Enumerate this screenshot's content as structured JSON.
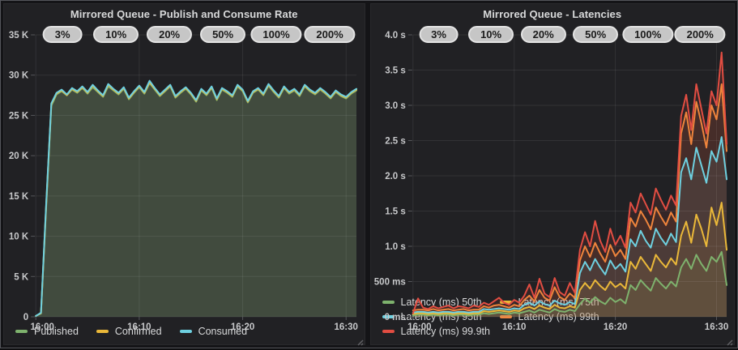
{
  "window": {
    "theme": "grafana-dark"
  },
  "chart_data": [
    {
      "type": "area",
      "title": "Mirrored Queue - Publish and Consume Rate",
      "annotations": [
        "3%",
        "10%",
        "20%",
        "50%",
        "100%",
        "200%"
      ],
      "x_max": 31,
      "xticks": [
        {
          "t": 0,
          "label": "16:00"
        },
        {
          "t": 10,
          "label": "16:10"
        },
        {
          "t": 20,
          "label": "16:20"
        },
        {
          "t": 30,
          "label": "16:30"
        }
      ],
      "ylim": [
        0,
        35
      ],
      "yticks": [
        {
          "v": 0,
          "label": "0"
        },
        {
          "v": 5,
          "label": "5 K"
        },
        {
          "v": 10,
          "label": "10 K"
        },
        {
          "v": 15,
          "label": "15 K"
        },
        {
          "v": 20,
          "label": "20 K"
        },
        {
          "v": 25,
          "label": "25 K"
        },
        {
          "v": 30,
          "label": "30 K"
        },
        {
          "v": 35,
          "label": "35 K"
        }
      ],
      "y_value_scale": "thousands",
      "grid": true,
      "legend_position": "bottom",
      "fill_opacity": 0.1,
      "series": [
        {
          "name": "Published",
          "color": "#7eb26d",
          "values": [
            0.1,
            0.4,
            13.5,
            26.2,
            27.6,
            28.0,
            27.5,
            28.2,
            27.8,
            28.4,
            27.7,
            28.5,
            27.9,
            27.3,
            28.6,
            28.1,
            27.6,
            28.3,
            27.0,
            27.8,
            28.5,
            27.7,
            29.0,
            28.2,
            27.4,
            28.0,
            28.6,
            27.2,
            27.8,
            28.3,
            27.6,
            26.7,
            28.1,
            27.5,
            28.4,
            26.9,
            28.2,
            27.8,
            27.3,
            28.6,
            28.0,
            26.6,
            27.8,
            28.2,
            27.5,
            28.7,
            27.9,
            27.2,
            28.4,
            27.7,
            28.1,
            27.4,
            28.6,
            28.0,
            27.6,
            28.2,
            27.7,
            27.1,
            27.9,
            27.4,
            27.1,
            27.7,
            28.1
          ]
        },
        {
          "name": "Confirmed",
          "color": "#eab839",
          "values": [
            0.1,
            0.45,
            13.8,
            26.4,
            27.7,
            28.1,
            27.5,
            28.3,
            27.9,
            28.5,
            27.8,
            28.7,
            28.0,
            27.4,
            28.8,
            28.2,
            27.7,
            28.4,
            27.1,
            27.9,
            28.6,
            27.8,
            29.1,
            28.3,
            27.5,
            28.1,
            28.7,
            27.3,
            27.9,
            28.4,
            27.7,
            26.8,
            28.2,
            27.6,
            28.5,
            27.0,
            28.3,
            27.9,
            27.4,
            28.7,
            28.1,
            26.7,
            27.9,
            28.3,
            27.6,
            28.8,
            28.0,
            27.3,
            28.5,
            27.8,
            28.2,
            27.5,
            28.7,
            28.1,
            27.7,
            28.3,
            27.8,
            27.2,
            28.0,
            27.5,
            27.2,
            27.8,
            28.2
          ]
        },
        {
          "name": "Consumed",
          "color": "#6ed0e0",
          "values": [
            0.1,
            0.5,
            14.0,
            26.5,
            27.8,
            28.2,
            27.6,
            28.4,
            28.0,
            28.6,
            27.9,
            28.8,
            28.1,
            27.5,
            28.9,
            28.3,
            27.8,
            28.5,
            27.2,
            28.0,
            28.7,
            27.9,
            29.3,
            28.4,
            27.6,
            28.2,
            28.8,
            27.4,
            28.0,
            28.5,
            27.8,
            26.9,
            28.3,
            27.7,
            28.6,
            27.1,
            28.4,
            28.0,
            27.5,
            28.8,
            28.2,
            26.8,
            28.0,
            28.4,
            27.7,
            28.9,
            28.1,
            27.4,
            28.6,
            27.9,
            28.3,
            27.6,
            28.8,
            28.2,
            27.8,
            28.4,
            27.9,
            27.3,
            28.1,
            27.6,
            27.3,
            27.9,
            28.3
          ]
        }
      ]
    },
    {
      "type": "area",
      "title": "Mirrored Queue - Latencies",
      "annotations": [
        "3%",
        "10%",
        "20%",
        "50%",
        "100%",
        "200%"
      ],
      "x_max": 31,
      "xticks": [
        {
          "t": 0,
          "label": "16:00"
        },
        {
          "t": 10,
          "label": "16:10"
        },
        {
          "t": 20,
          "label": "16:20"
        },
        {
          "t": 30,
          "label": "16:30"
        }
      ],
      "ylim": [
        0,
        4
      ],
      "yticks": [
        {
          "v": 0,
          "label": "0 ms"
        },
        {
          "v": 0.5,
          "label": "500 ms"
        },
        {
          "v": 1,
          "label": "1.0 s"
        },
        {
          "v": 1.5,
          "label": "1.5 s"
        },
        {
          "v": 2,
          "label": "2.0 s"
        },
        {
          "v": 2.5,
          "label": "2.5 s"
        },
        {
          "v": 3,
          "label": "3.0 s"
        },
        {
          "v": 3.5,
          "label": "3.5 s"
        },
        {
          "v": 4,
          "label": "4.0 s"
        }
      ],
      "y_value_scale": "seconds",
      "grid": true,
      "legend_position": "bottom",
      "fill_opacity": 0.1,
      "series": [
        {
          "name": "Latency (ms) 50th",
          "color": "#7eb26d",
          "values": [
            0.02,
            0.03,
            0.03,
            0.02,
            0.03,
            0.02,
            0.03,
            0.03,
            0.02,
            0.03,
            0.03,
            0.02,
            0.03,
            0.03,
            0.05,
            0.04,
            0.05,
            0.06,
            0.05,
            0.04,
            0.06,
            0.05,
            0.07,
            0.09,
            0.06,
            0.1,
            0.08,
            0.06,
            0.11,
            0.08,
            0.07,
            0.1,
            0.08,
            0.18,
            0.26,
            0.2,
            0.28,
            0.22,
            0.18,
            0.27,
            0.21,
            0.25,
            0.19,
            0.45,
            0.38,
            0.52,
            0.44,
            0.37,
            0.55,
            0.47,
            0.4,
            0.5,
            0.43,
            0.7,
            0.82,
            0.68,
            0.88,
            0.75,
            0.65,
            0.85,
            0.78,
            0.92,
            0.45
          ]
        },
        {
          "name": "Latency (ms) 75th",
          "color": "#eab839",
          "values": [
            0.04,
            0.05,
            0.05,
            0.04,
            0.05,
            0.04,
            0.05,
            0.05,
            0.04,
            0.05,
            0.05,
            0.04,
            0.05,
            0.05,
            0.08,
            0.07,
            0.08,
            0.09,
            0.08,
            0.07,
            0.09,
            0.08,
            0.12,
            0.14,
            0.11,
            0.16,
            0.13,
            0.11,
            0.17,
            0.13,
            0.12,
            0.15,
            0.13,
            0.38,
            0.48,
            0.4,
            0.52,
            0.44,
            0.38,
            0.5,
            0.42,
            0.47,
            0.4,
            0.78,
            0.68,
            0.85,
            0.75,
            0.65,
            0.88,
            0.78,
            0.7,
            0.83,
            0.74,
            1.15,
            1.35,
            1.05,
            1.45,
            1.25,
            1.0,
            1.55,
            1.3,
            1.62,
            0.95
          ]
        },
        {
          "name": "Latency (ms) 95th",
          "color": "#6ed0e0",
          "values": [
            0.06,
            0.07,
            0.07,
            0.06,
            0.07,
            0.06,
            0.07,
            0.07,
            0.06,
            0.07,
            0.07,
            0.06,
            0.07,
            0.07,
            0.11,
            0.1,
            0.11,
            0.12,
            0.11,
            0.1,
            0.12,
            0.11,
            0.17,
            0.2,
            0.16,
            0.22,
            0.18,
            0.16,
            0.23,
            0.19,
            0.17,
            0.21,
            0.18,
            0.62,
            0.78,
            0.66,
            0.82,
            0.7,
            0.6,
            0.8,
            0.68,
            0.75,
            0.64,
            1.1,
            1.0,
            1.22,
            1.08,
            0.98,
            1.25,
            1.12,
            1.02,
            1.18,
            1.06,
            2.05,
            2.25,
            1.95,
            2.4,
            2.15,
            1.9,
            2.35,
            2.2,
            2.55,
            1.95
          ]
        },
        {
          "name": "Latency (ms) 99th",
          "color": "#ef843c",
          "values": [
            0.09,
            0.1,
            0.1,
            0.09,
            0.11,
            0.09,
            0.1,
            0.11,
            0.09,
            0.1,
            0.11,
            0.09,
            0.1,
            0.1,
            0.15,
            0.13,
            0.16,
            0.17,
            0.15,
            0.13,
            0.17,
            0.15,
            0.24,
            0.3,
            0.22,
            0.38,
            0.27,
            0.23,
            0.42,
            0.28,
            0.24,
            0.33,
            0.27,
            0.8,
            1.0,
            0.85,
            1.05,
            0.9,
            0.78,
            1.02,
            0.86,
            0.95,
            0.82,
            1.4,
            1.28,
            1.5,
            1.38,
            1.24,
            1.55,
            1.42,
            1.3,
            1.48,
            1.35,
            2.6,
            2.9,
            2.45,
            3.05,
            2.75,
            2.4,
            3.0,
            2.8,
            3.3,
            2.35
          ]
        },
        {
          "name": "Latency (ms) 99.9th",
          "color": "#e24d42",
          "values": [
            0.05,
            0.26,
            0.13,
            0.11,
            0.15,
            0.12,
            0.14,
            0.16,
            0.12,
            0.15,
            0.14,
            0.12,
            0.16,
            0.14,
            0.2,
            0.17,
            0.22,
            0.27,
            0.2,
            0.17,
            0.24,
            0.2,
            0.3,
            0.46,
            0.27,
            0.54,
            0.33,
            0.28,
            0.55,
            0.35,
            0.3,
            0.48,
            0.34,
            0.95,
            1.2,
            1.0,
            1.36,
            1.08,
            0.92,
            1.25,
            1.02,
            1.15,
            0.98,
            1.62,
            1.48,
            1.75,
            1.6,
            1.45,
            1.82,
            1.66,
            1.52,
            1.72,
            1.58,
            2.85,
            3.15,
            2.65,
            3.3,
            2.95,
            2.6,
            3.2,
            3.0,
            3.75,
            2.45
          ]
        }
      ]
    }
  ],
  "colors": {
    "panel_bg": "#212124",
    "page_bg": "#141417",
    "grid": "rgba(255,255,255,0.08)",
    "tick_text": "#c7c8ca",
    "title_text": "#d8d9da",
    "pill_bg": "#c6c6c6",
    "pill_text": "#1b1b1b"
  }
}
